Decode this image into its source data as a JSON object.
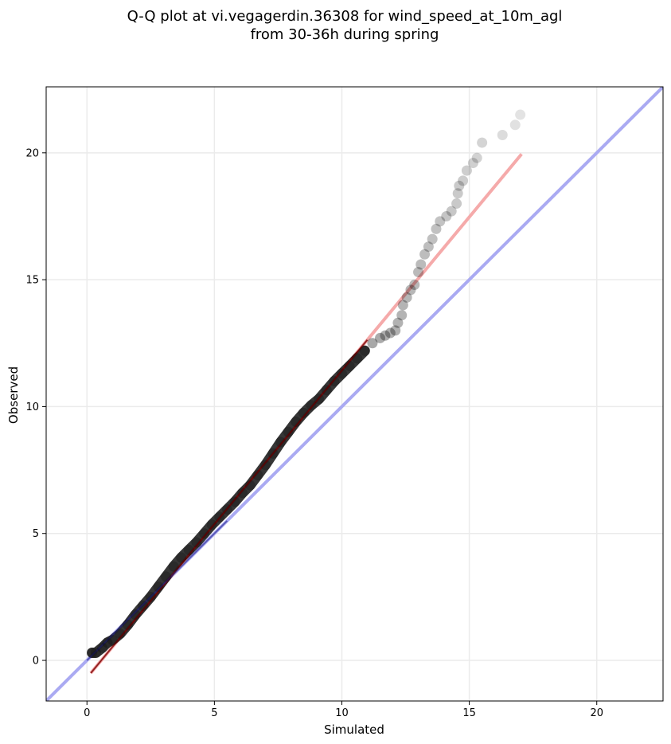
{
  "chart_data": {
    "type": "scatter",
    "title_line1": "Q-Q plot at vi.vegagerdin.36308 for wind_speed_at_10m_agl",
    "title_line2": "from 30-36h during spring",
    "xlabel": "Simulated",
    "ylabel": "Observed",
    "xlim": [
      -1.6,
      22.6
    ],
    "ylim": [
      -1.6,
      22.6
    ],
    "xticks": [
      0,
      5,
      10,
      15,
      20
    ],
    "yticks": [
      0,
      5,
      10,
      15,
      20
    ],
    "xtick_labels": [
      "0",
      "5",
      "10",
      "15",
      "20"
    ],
    "ytick_labels": [
      "0",
      "5",
      "10",
      "15",
      "20"
    ],
    "grid": true,
    "colors": {
      "identity_line": "#aaaaf2",
      "fit_line": "#f5aaaa",
      "fit_line_dark": "#7a0000",
      "points": "#000000",
      "dense_line": "#1a1a1a"
    },
    "identity_line": {
      "x": [
        -1.6,
        22.6
      ],
      "y": [
        -1.6,
        22.6
      ]
    },
    "fit_line": {
      "x": [
        0.15,
        17.05
      ],
      "y": [
        -0.5,
        19.95
      ]
    },
    "points": [
      [
        0.2,
        0.3
      ],
      [
        0.35,
        0.3
      ],
      [
        0.6,
        0.5
      ],
      [
        0.8,
        0.7
      ],
      [
        1.0,
        0.8
      ],
      [
        1.3,
        1.05
      ],
      [
        1.6,
        1.4
      ],
      [
        1.9,
        1.8
      ],
      [
        2.2,
        2.15
      ],
      [
        2.5,
        2.5
      ],
      [
        2.8,
        2.9
      ],
      [
        3.1,
        3.3
      ],
      [
        3.4,
        3.7
      ],
      [
        3.7,
        4.05
      ],
      [
        4.0,
        4.35
      ],
      [
        4.3,
        4.65
      ],
      [
        4.6,
        5.0
      ],
      [
        4.9,
        5.35
      ],
      [
        5.2,
        5.65
      ],
      [
        5.5,
        5.95
      ],
      [
        5.8,
        6.25
      ],
      [
        6.1,
        6.6
      ],
      [
        6.4,
        6.9
      ],
      [
        6.7,
        7.3
      ],
      [
        7.0,
        7.7
      ],
      [
        7.3,
        8.15
      ],
      [
        7.6,
        8.6
      ],
      [
        7.9,
        9.0
      ],
      [
        8.2,
        9.4
      ],
      [
        8.5,
        9.75
      ],
      [
        8.8,
        10.05
      ],
      [
        9.1,
        10.3
      ],
      [
        9.4,
        10.65
      ],
      [
        9.7,
        11.0
      ],
      [
        10.0,
        11.3
      ],
      [
        10.3,
        11.6
      ],
      [
        10.6,
        11.9
      ],
      [
        10.9,
        12.2
      ],
      [
        11.2,
        12.5
      ],
      [
        11.5,
        12.7
      ],
      [
        11.7,
        12.8
      ],
      [
        11.9,
        12.9
      ],
      [
        12.1,
        13.0
      ],
      [
        12.2,
        13.3
      ],
      [
        12.35,
        13.6
      ],
      [
        12.4,
        14.0
      ],
      [
        12.55,
        14.3
      ],
      [
        12.7,
        14.6
      ],
      [
        12.85,
        14.8
      ],
      [
        13.0,
        15.3
      ],
      [
        13.1,
        15.6
      ],
      [
        13.25,
        16.0
      ],
      [
        13.4,
        16.3
      ],
      [
        13.55,
        16.6
      ],
      [
        13.7,
        17.0
      ],
      [
        13.85,
        17.3
      ],
      [
        14.1,
        17.5
      ],
      [
        14.3,
        17.7
      ],
      [
        14.5,
        18.0
      ],
      [
        14.55,
        18.4
      ],
      [
        14.6,
        18.7
      ],
      [
        14.75,
        18.9
      ],
      [
        14.9,
        19.3
      ],
      [
        15.15,
        19.6
      ],
      [
        15.3,
        19.8
      ],
      [
        15.5,
        20.4
      ],
      [
        16.3,
        20.7
      ],
      [
        16.8,
        21.1
      ],
      [
        17.0,
        21.5
      ]
    ]
  }
}
